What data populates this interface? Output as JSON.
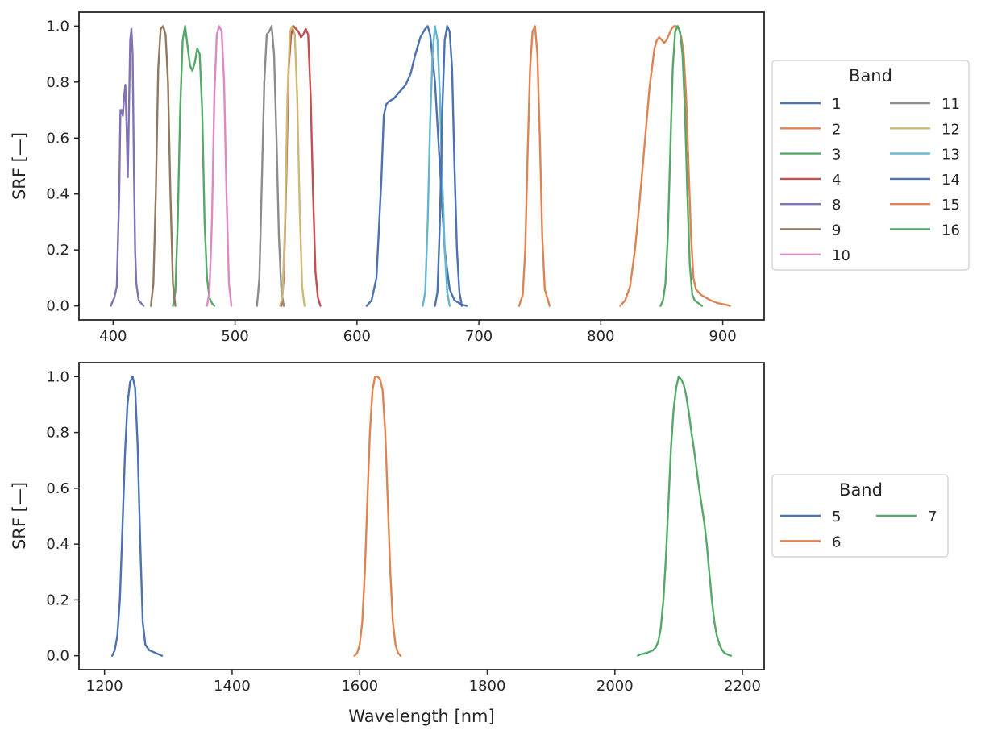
{
  "chart_data": [
    {
      "type": "line",
      "xlabel": "",
      "ylabel": "SRF [—]",
      "xlim": [
        372,
        934
      ],
      "ylim": [
        -0.05,
        1.05
      ],
      "xticks": [
        "400",
        "500",
        "600",
        "700",
        "800",
        "900"
      ],
      "yticks": [
        "0.0",
        "0.2",
        "0.4",
        "0.6",
        "0.8",
        "1.0"
      ],
      "legend": {
        "title": "Band",
        "placement": "outside right",
        "columns": 2
      },
      "series": [
        {
          "name": "1",
          "color": "#4c72b0",
          "x": [
            608,
            612,
            616,
            620,
            622,
            624,
            626,
            630,
            636,
            640,
            644,
            648,
            652,
            656,
            658,
            660,
            664,
            668,
            672,
            676,
            680,
            686,
            690
          ],
          "y": [
            0,
            0.02,
            0.1,
            0.45,
            0.68,
            0.72,
            0.73,
            0.74,
            0.77,
            0.79,
            0.83,
            0.9,
            0.96,
            0.99,
            1.0,
            0.97,
            0.8,
            0.5,
            0.2,
            0.06,
            0.02,
            0.005,
            0
          ]
        },
        {
          "name": "2",
          "color": "#dd8452",
          "x": [
            733,
            736,
            738,
            740,
            742,
            744,
            746,
            748,
            750,
            752,
            754,
            758
          ],
          "y": [
            0,
            0.04,
            0.2,
            0.55,
            0.85,
            0.98,
            1.0,
            0.9,
            0.6,
            0.25,
            0.06,
            0
          ]
        },
        {
          "name": "3",
          "color": "#55a868",
          "x": [
            449,
            451,
            453,
            455,
            457,
            459,
            461,
            463,
            465,
            467,
            469,
            471,
            473,
            475,
            477,
            479,
            481,
            483
          ],
          "y": [
            0,
            0.05,
            0.3,
            0.7,
            0.95,
            1.0,
            0.93,
            0.86,
            0.84,
            0.87,
            0.92,
            0.9,
            0.7,
            0.3,
            0.1,
            0.03,
            0.01,
            0
          ]
        },
        {
          "name": "4",
          "color": "#c44e52",
          "x": [
            538,
            540,
            542,
            544,
            546,
            548,
            550,
            552,
            554,
            556,
            558,
            560,
            562,
            564,
            566,
            568,
            570
          ],
          "y": [
            0,
            0.1,
            0.45,
            0.85,
            0.97,
            1.0,
            0.99,
            0.98,
            0.96,
            0.97,
            0.99,
            0.97,
            0.75,
            0.4,
            0.12,
            0.03,
            0
          ]
        },
        {
          "name": "8",
          "color": "#8172b3",
          "x": [
            398,
            401,
            403,
            405,
            406,
            407,
            408,
            409,
            410,
            411,
            412,
            413,
            414,
            415,
            416,
            417,
            418,
            419,
            421,
            423,
            425
          ],
          "y": [
            0,
            0.03,
            0.07,
            0.4,
            0.7,
            0.7,
            0.68,
            0.75,
            0.79,
            0.65,
            0.46,
            0.7,
            0.95,
            0.99,
            0.9,
            0.5,
            0.2,
            0.08,
            0.02,
            0.01,
            0
          ]
        },
        {
          "name": "9",
          "color": "#937860",
          "x": [
            431,
            433,
            435,
            437,
            439,
            441,
            443,
            445,
            447,
            449,
            451
          ],
          "y": [
            0,
            0.08,
            0.4,
            0.85,
            0.99,
            1.0,
            0.97,
            0.8,
            0.4,
            0.08,
            0
          ]
        },
        {
          "name": "10",
          "color": "#da8bc3",
          "x": [
            477,
            479,
            481,
            483,
            485,
            487,
            489,
            491,
            493,
            495,
            497
          ],
          "y": [
            0,
            0.05,
            0.3,
            0.75,
            0.97,
            1.0,
            0.98,
            0.8,
            0.4,
            0.08,
            0
          ]
        },
        {
          "name": "11",
          "color": "#8c8c8c",
          "x": [
            518,
            520,
            522,
            524,
            526,
            528,
            530,
            532,
            534,
            536,
            538,
            540
          ],
          "y": [
            0,
            0.1,
            0.45,
            0.8,
            0.97,
            0.98,
            1.0,
            0.9,
            0.6,
            0.25,
            0.05,
            0
          ]
        },
        {
          "name": "12",
          "color": "#ccb974",
          "x": [
            537,
            539,
            541,
            543,
            545,
            547,
            549,
            551,
            553,
            555,
            557
          ],
          "y": [
            0,
            0.04,
            0.3,
            0.75,
            0.98,
            1.0,
            0.97,
            0.75,
            0.35,
            0.07,
            0
          ]
        },
        {
          "name": "13",
          "color": "#64b5cd",
          "x": [
            654,
            656,
            658,
            660,
            662,
            664,
            666,
            668,
            670,
            672,
            674,
            676
          ],
          "y": [
            0,
            0.05,
            0.3,
            0.65,
            0.9,
            1.0,
            0.95,
            0.75,
            0.45,
            0.2,
            0.05,
            0
          ]
        },
        {
          "name": "14",
          "color": "#4c72b0",
          "x": [
            664,
            666,
            668,
            670,
            672,
            674,
            676,
            678,
            680,
            682,
            684,
            686
          ],
          "y": [
            0,
            0.05,
            0.3,
            0.7,
            0.95,
            1.0,
            0.98,
            0.85,
            0.5,
            0.2,
            0.05,
            0
          ]
        },
        {
          "name": "15",
          "color": "#dd8452",
          "x": [
            816,
            820,
            824,
            828,
            832,
            836,
            840,
            844,
            846,
            848,
            850,
            852,
            854,
            856,
            858,
            860,
            862,
            864,
            866,
            868,
            870,
            872,
            874,
            876,
            878,
            882,
            886,
            890,
            896,
            902,
            906
          ],
          "y": [
            0,
            0.02,
            0.07,
            0.2,
            0.38,
            0.58,
            0.78,
            0.92,
            0.95,
            0.96,
            0.95,
            0.94,
            0.95,
            0.97,
            0.99,
            1.0,
            1.0,
            0.99,
            0.96,
            0.9,
            0.75,
            0.5,
            0.25,
            0.1,
            0.06,
            0.04,
            0.03,
            0.02,
            0.01,
            0.005,
            0
          ]
        },
        {
          "name": "16",
          "color": "#55a868",
          "x": [
            849,
            851,
            853,
            855,
            857,
            859,
            861,
            863,
            865,
            867,
            869,
            871,
            873,
            875,
            877,
            880,
            883
          ],
          "y": [
            0,
            0.02,
            0.08,
            0.25,
            0.55,
            0.85,
            0.98,
            1.0,
            0.98,
            0.9,
            0.7,
            0.4,
            0.15,
            0.04,
            0.02,
            0.01,
            0
          ]
        }
      ]
    },
    {
      "type": "line",
      "xlabel": "Wavelength [nm]",
      "ylabel": "SRF [—]",
      "xlim": [
        1160,
        2234
      ],
      "ylim": [
        -0.05,
        1.05
      ],
      "xticks": [
        "1200",
        "1400",
        "1600",
        "1800",
        "2000",
        "2200"
      ],
      "yticks": [
        "0.0",
        "0.2",
        "0.4",
        "0.6",
        "0.8",
        "1.0"
      ],
      "legend": {
        "title": "Band",
        "placement": "outside right",
        "columns": 2
      },
      "series": [
        {
          "name": "5",
          "color": "#4c72b0",
          "x": [
            1212,
            1216,
            1220,
            1224,
            1228,
            1232,
            1236,
            1240,
            1244,
            1248,
            1252,
            1256,
            1260,
            1264,
            1270,
            1280,
            1290
          ],
          "y": [
            0,
            0.02,
            0.07,
            0.2,
            0.45,
            0.72,
            0.9,
            0.98,
            1.0,
            0.96,
            0.75,
            0.4,
            0.12,
            0.04,
            0.02,
            0.01,
            0
          ]
        },
        {
          "name": "6",
          "color": "#dd8452",
          "x": [
            1592,
            1596,
            1600,
            1604,
            1608,
            1612,
            1616,
            1620,
            1624,
            1628,
            1632,
            1636,
            1640,
            1644,
            1648,
            1652,
            1656,
            1660,
            1664
          ],
          "y": [
            0,
            0.01,
            0.04,
            0.12,
            0.3,
            0.55,
            0.8,
            0.95,
            1.0,
            1.0,
            0.99,
            0.95,
            0.8,
            0.55,
            0.3,
            0.12,
            0.04,
            0.01,
            0
          ]
        },
        {
          "name": "7",
          "color": "#55a868",
          "x": [
            2036,
            2040,
            2050,
            2060,
            2064,
            2068,
            2072,
            2076,
            2080,
            2084,
            2088,
            2092,
            2096,
            2100,
            2104,
            2108,
            2112,
            2116,
            2120,
            2124,
            2128,
            2132,
            2136,
            2140,
            2144,
            2148,
            2152,
            2156,
            2160,
            2164,
            2168,
            2172,
            2176,
            2182
          ],
          "y": [
            0,
            0.005,
            0.01,
            0.02,
            0.03,
            0.05,
            0.1,
            0.2,
            0.35,
            0.55,
            0.75,
            0.88,
            0.96,
            1.0,
            0.99,
            0.97,
            0.93,
            0.87,
            0.8,
            0.74,
            0.67,
            0.6,
            0.54,
            0.48,
            0.4,
            0.3,
            0.2,
            0.12,
            0.07,
            0.04,
            0.02,
            0.01,
            0.005,
            0
          ]
        }
      ]
    }
  ]
}
